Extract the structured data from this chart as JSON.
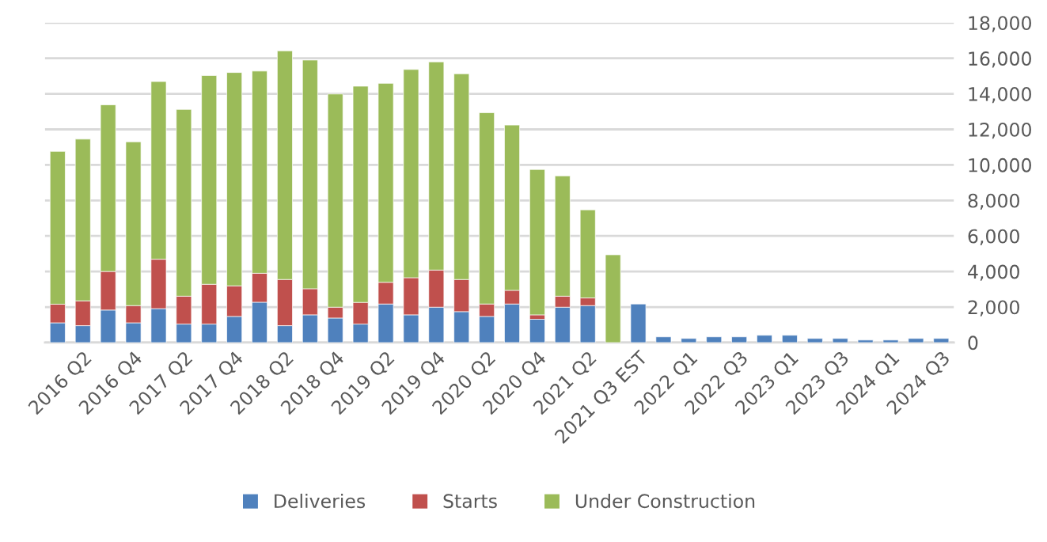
{
  "chart_data": {
    "type": "bar",
    "stacked": true,
    "categories": [
      null,
      "2016 Q2",
      null,
      "2016 Q4",
      null,
      "2017 Q2",
      null,
      "2017 Q4",
      null,
      "2018 Q2",
      null,
      "2018 Q4",
      null,
      "2019 Q2",
      null,
      "2019 Q4",
      null,
      "2020 Q2",
      null,
      "2020 Q4",
      null,
      "2021 Q2",
      null,
      "2021 Q3 EST",
      null,
      "2022 Q1",
      null,
      "2022 Q3",
      null,
      "2023 Q1",
      null,
      "2023 Q3",
      null,
      "2024 Q1",
      null,
      "2024 Q3"
    ],
    "series": [
      {
        "name": "Deliveries",
        "color": "#4f81bd",
        "values": [
          1110,
          950,
          1830,
          1110,
          1910,
          1040,
          1040,
          1470,
          2270,
          950,
          1560,
          1380,
          1040,
          2170,
          1560,
          1990,
          1740,
          1470,
          2170,
          1310,
          1990,
          2080,
          0,
          2170,
          320,
          230,
          320,
          320,
          410,
          410,
          230,
          230,
          140,
          140,
          230,
          230
        ]
      },
      {
        "name": "Starts",
        "color": "#c0504d",
        "values": [
          1050,
          1400,
          2170,
          970,
          2780,
          1570,
          2240,
          1720,
          1630,
          2600,
          1470,
          610,
          1220,
          1220,
          2090,
          2090,
          1810,
          700,
          770,
          250,
          620,
          430,
          0,
          null,
          null,
          null,
          null,
          null,
          null,
          null,
          null,
          null,
          null,
          null,
          null,
          null
        ]
      },
      {
        "name": "Under Construction",
        "color": "#9bbb59",
        "values": [
          8600,
          9100,
          9380,
          9220,
          10000,
          10510,
          11750,
          12010,
          11380,
          12870,
          12870,
          12000,
          12170,
          11200,
          11720,
          11720,
          11580,
          10770,
          9300,
          8180,
          6770,
          4960,
          4940,
          null,
          null,
          null,
          null,
          null,
          null,
          null,
          null,
          null,
          null,
          null,
          null,
          null
        ]
      }
    ],
    "ylim": [
      0,
      18000
    ],
    "yticks": [
      {
        "value": 0,
        "label": "0"
      },
      {
        "value": 2000,
        "label": "2,000"
      },
      {
        "value": 4000,
        "label": "4,000"
      },
      {
        "value": 6000,
        "label": "6,000"
      },
      {
        "value": 8000,
        "label": "8,000"
      },
      {
        "value": 10000,
        "label": "10,000"
      },
      {
        "value": 12000,
        "label": "12,000"
      },
      {
        "value": 14000,
        "label": "14,000"
      },
      {
        "value": 16000,
        "label": "16,000"
      },
      {
        "value": 18000,
        "label": "18,000"
      }
    ],
    "grid": "y",
    "legend": "bottom"
  }
}
